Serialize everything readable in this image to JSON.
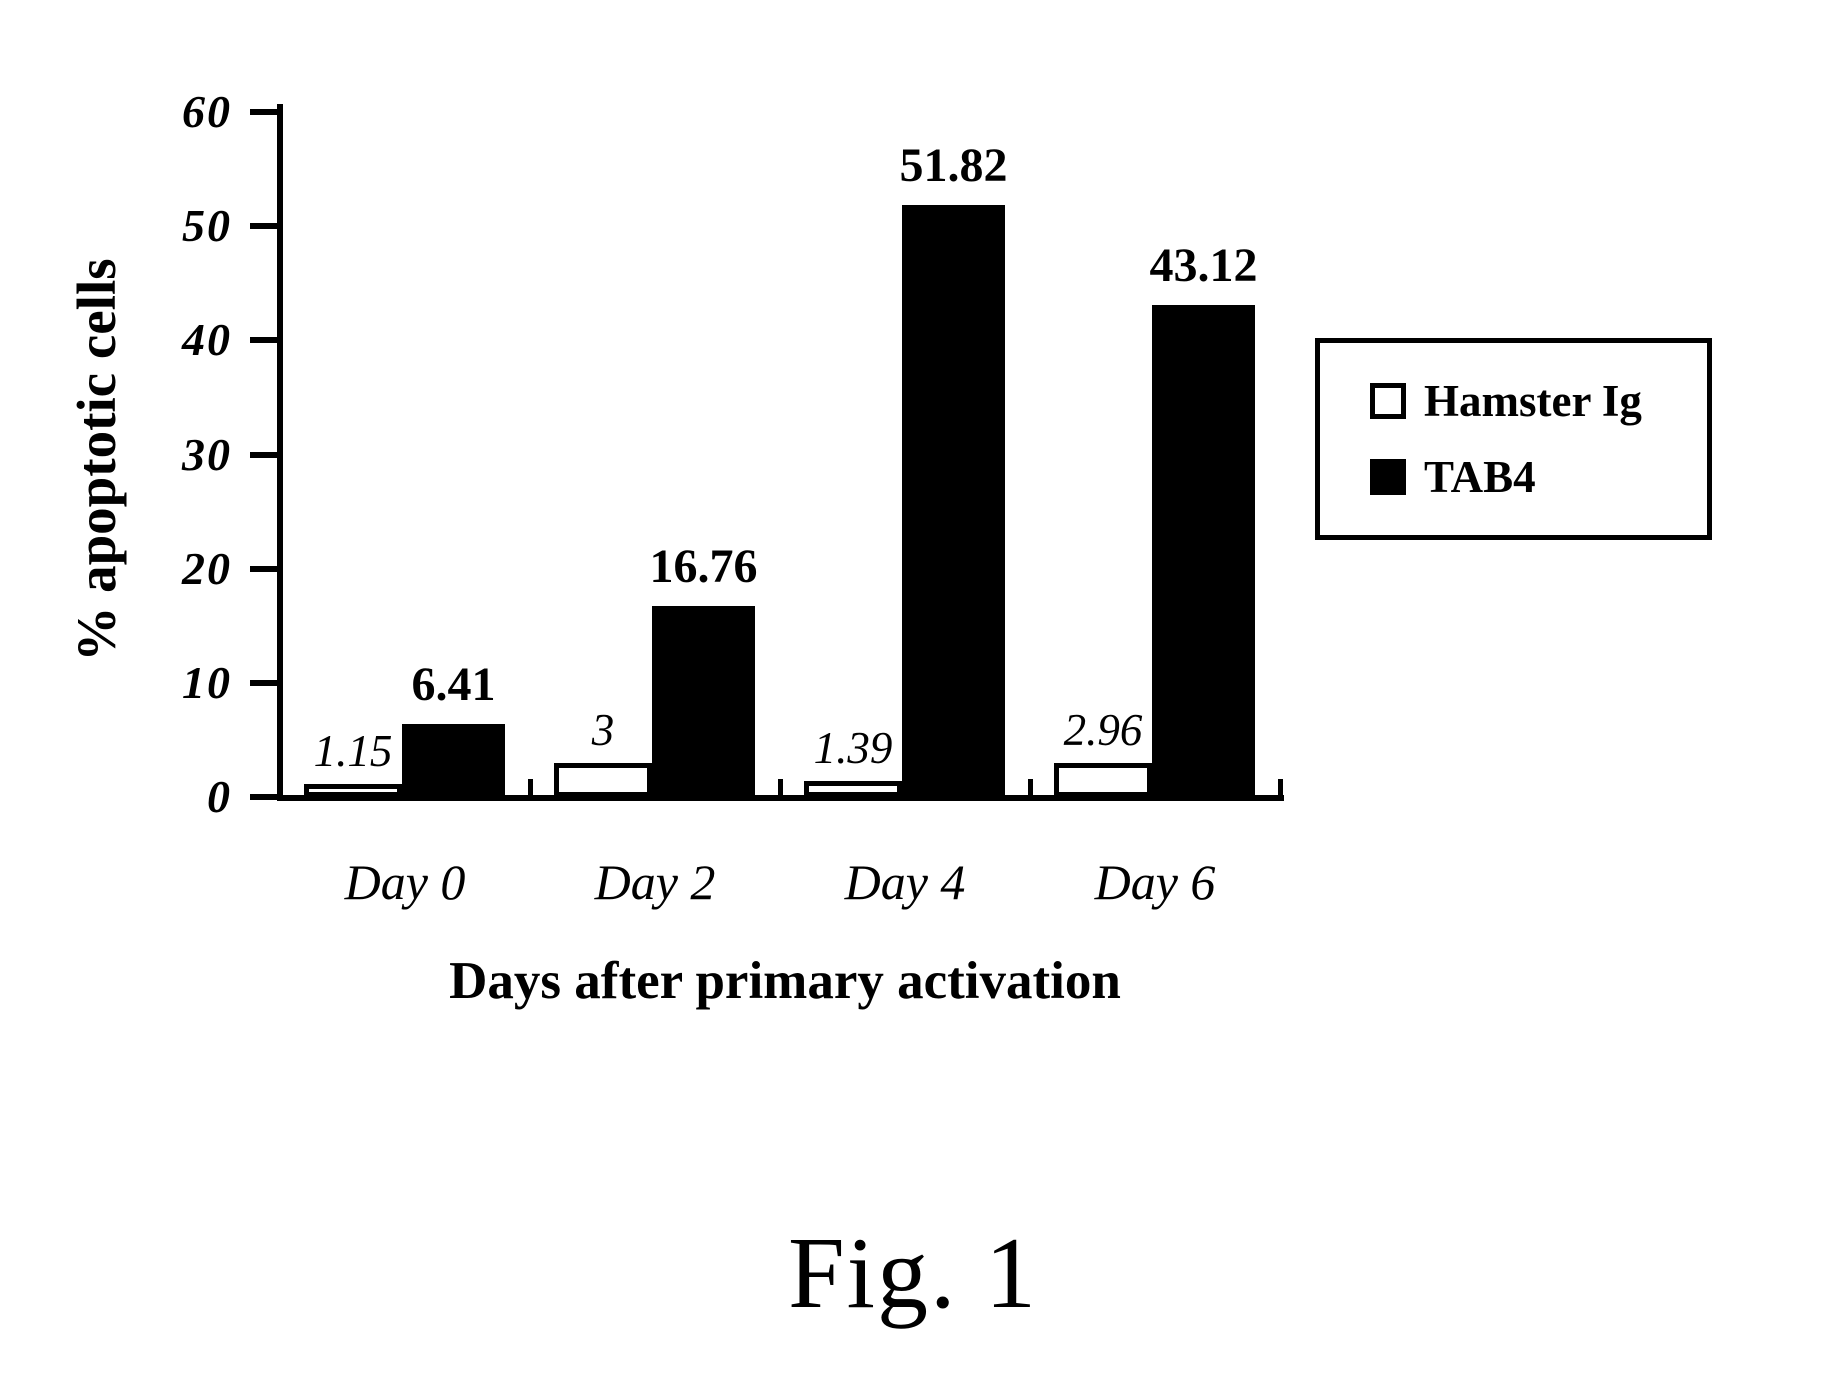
{
  "figure": {
    "caption": "Fig. 1"
  },
  "chart_data": {
    "type": "bar",
    "title": "",
    "xlabel": "Days after primary activation",
    "ylabel": "% apoptotic cells",
    "categories": [
      "Day 0",
      "Day 2",
      "Day 4",
      "Day 6"
    ],
    "series": [
      {
        "name": "Hamster Ig",
        "color": "#ffffff",
        "values": [
          1.15,
          3,
          1.39,
          2.96
        ],
        "labels": [
          "1.15",
          "3",
          "1.39",
          "2.96"
        ]
      },
      {
        "name": "TAB4",
        "color": "#000000",
        "values": [
          6.41,
          16.76,
          51.82,
          43.12
        ],
        "labels": [
          "6.41",
          "16.76",
          "51.82",
          "43.12"
        ]
      }
    ],
    "ylim": [
      0,
      60
    ],
    "yticks": [
      0,
      10,
      20,
      30,
      40,
      50,
      60
    ],
    "legend_position": "right",
    "grid": false,
    "bar_color_scheme": {
      "ink": "#000000",
      "paper": "#ffffff"
    }
  }
}
